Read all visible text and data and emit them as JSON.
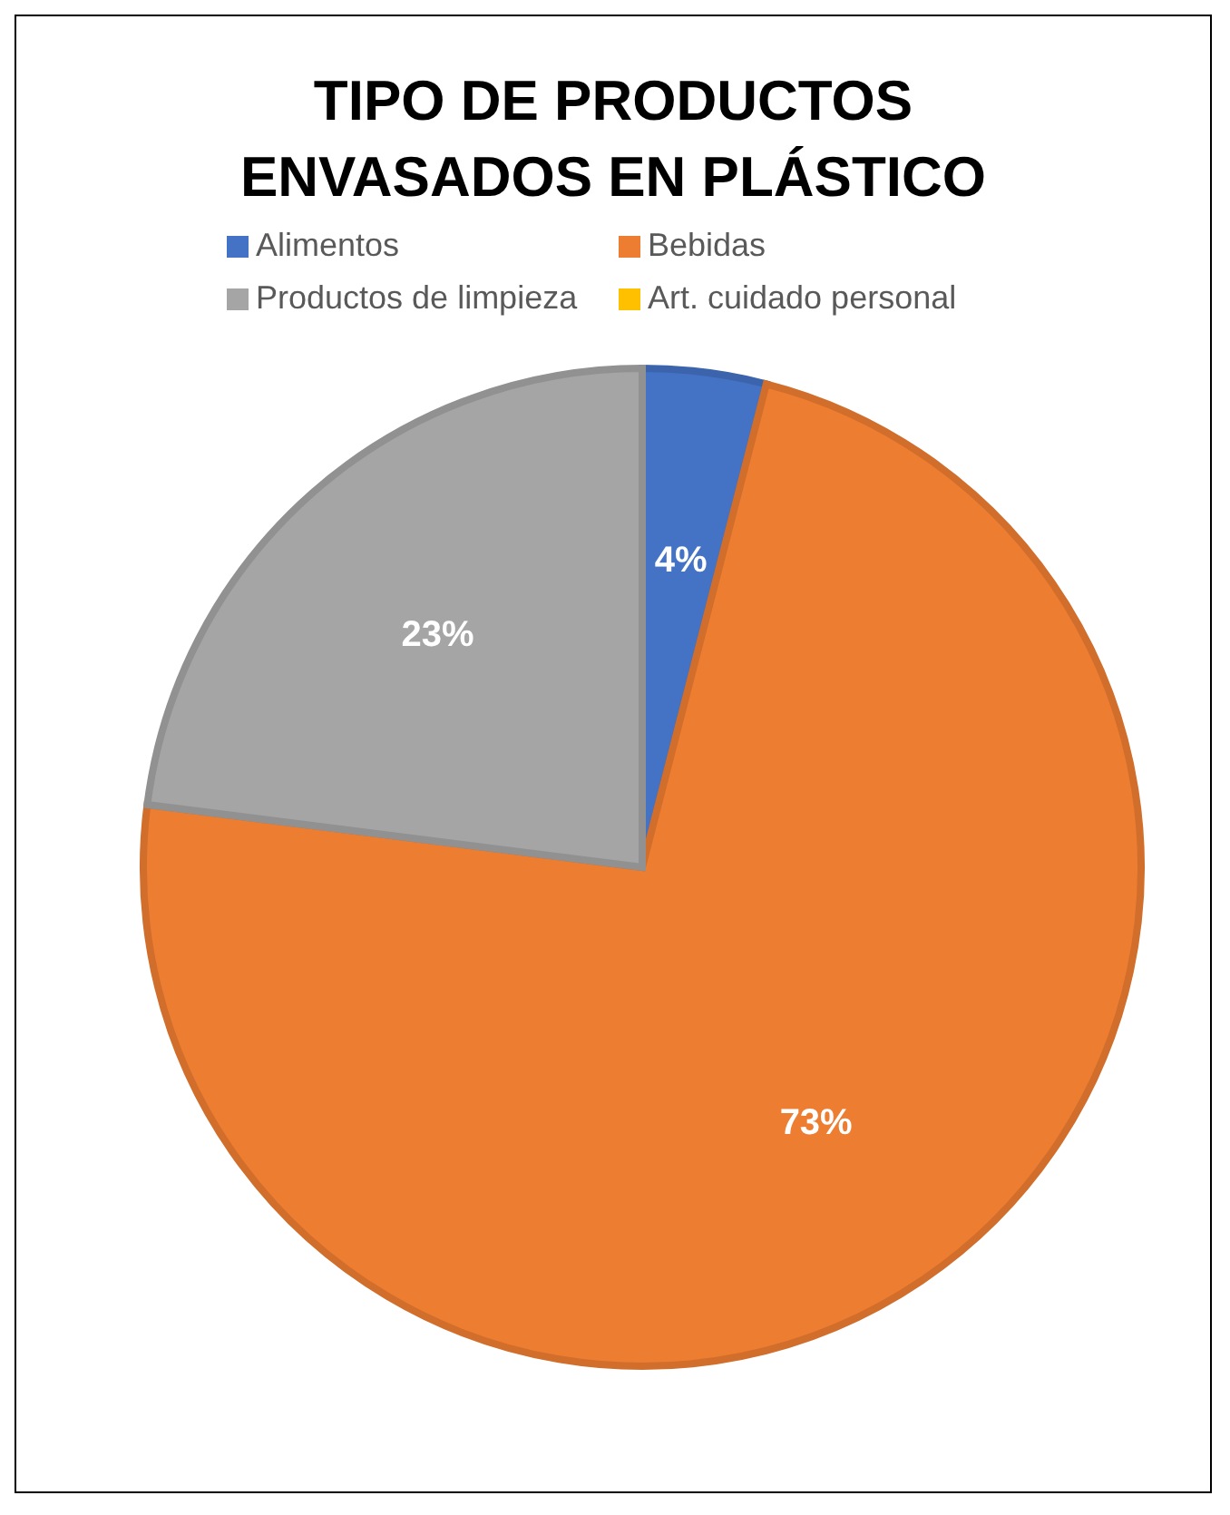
{
  "chart_data": {
    "type": "pie",
    "title": "TIPO DE PRODUCTOS ENVASADOS EN PLÁSTICO",
    "categories": [
      "Alimentos",
      "Bebidas",
      "Productos de limpieza",
      "Art. cuidado personal"
    ],
    "values": [
      4,
      73,
      23,
      0
    ],
    "colors": [
      "#4472c4",
      "#ed7d31",
      "#a5a5a5",
      "#ffc000"
    ],
    "value_labels": [
      "4%",
      "73%",
      "23%",
      null
    ],
    "legend": "top"
  }
}
